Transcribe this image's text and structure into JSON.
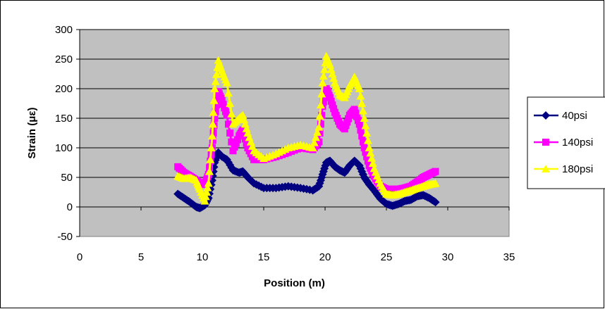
{
  "chart_data": {
    "type": "line",
    "title": "",
    "xlabel": "Position (m)",
    "ylabel": "Strain (με)",
    "xlim": [
      0,
      35
    ],
    "ylim": [
      -50,
      300
    ],
    "xticks": [
      "0",
      "5",
      "10",
      "15",
      "20",
      "25",
      "30",
      "35"
    ],
    "yticks": [
      "-50",
      "0",
      "50",
      "100",
      "150",
      "200",
      "250",
      "300"
    ],
    "grid": "horizontal",
    "plot_background": "#c0c0c0",
    "legend_position": "right",
    "series": [
      {
        "name": "40psi",
        "color": "#000080",
        "marker": "diamond",
        "x": [
          8,
          8.5,
          9,
          9.5,
          9.8,
          10.2,
          10.5,
          10.8,
          11,
          11.3,
          11.6,
          12,
          12.5,
          13,
          13.3,
          13.7,
          14.2,
          15,
          16,
          17,
          18,
          19,
          19.5,
          19.8,
          20.1,
          20.4,
          20.8,
          21.2,
          21.6,
          22,
          22.4,
          22.8,
          23.2,
          23.6,
          24,
          24.5,
          25,
          25.5,
          26,
          26.5,
          27,
          27.5,
          28,
          28.5,
          29
        ],
        "y": [
          22,
          15,
          8,
          0,
          -2,
          3,
          15,
          45,
          75,
          92,
          85,
          80,
          62,
          58,
          60,
          50,
          40,
          32,
          32,
          35,
          32,
          28,
          35,
          55,
          75,
          78,
          68,
          62,
          58,
          70,
          78,
          70,
          50,
          38,
          28,
          14,
          5,
          2,
          5,
          10,
          12,
          18,
          20,
          15,
          8
        ]
      },
      {
        "name": "140psi",
        "color": "#ff00ff",
        "marker": "square",
        "x": [
          8,
          8.5,
          9,
          9.5,
          9.8,
          10.2,
          10.5,
          10.8,
          11,
          11.3,
          11.6,
          12,
          12.5,
          13,
          13.3,
          13.7,
          14.2,
          15,
          16,
          17,
          18,
          19,
          19.5,
          19.8,
          20.1,
          20.4,
          20.8,
          21.2,
          21.6,
          22,
          22.4,
          22.8,
          23.2,
          23.6,
          24,
          24.5,
          25,
          25.5,
          26,
          26.5,
          27,
          27.5,
          28,
          28.5,
          29
        ],
        "y": [
          68,
          58,
          52,
          45,
          40,
          38,
          55,
          100,
          150,
          195,
          180,
          155,
          95,
          120,
          130,
          100,
          80,
          80,
          85,
          92,
          100,
          97,
          110,
          170,
          200,
          185,
          160,
          140,
          132,
          155,
          165,
          140,
          100,
          70,
          52,
          35,
          30,
          30,
          30,
          32,
          35,
          42,
          50,
          55,
          60
        ]
      },
      {
        "name": "180psi",
        "color": "#ffff00",
        "marker": "triangle",
        "x": [
          8,
          8.5,
          9,
          9.5,
          9.8,
          10.2,
          10.5,
          10.8,
          11,
          11.3,
          11.6,
          12,
          12.5,
          13,
          13.3,
          13.7,
          14.2,
          15,
          16,
          17,
          18,
          19,
          19.5,
          19.8,
          20.1,
          20.4,
          20.8,
          21.2,
          21.6,
          22,
          22.4,
          22.8,
          23.2,
          23.6,
          24,
          24.5,
          25,
          25.5,
          26,
          26.5,
          27,
          27.5,
          28,
          28.5,
          29
        ],
        "y": [
          52,
          48,
          50,
          45,
          30,
          10,
          40,
          120,
          200,
          248,
          230,
          210,
          140,
          150,
          155,
          125,
          95,
          82,
          90,
          100,
          105,
          100,
          135,
          210,
          255,
          240,
          210,
          190,
          185,
          205,
          220,
          200,
          150,
          100,
          65,
          40,
          22,
          20,
          22,
          25,
          28,
          32,
          35,
          38,
          40
        ]
      }
    ]
  }
}
